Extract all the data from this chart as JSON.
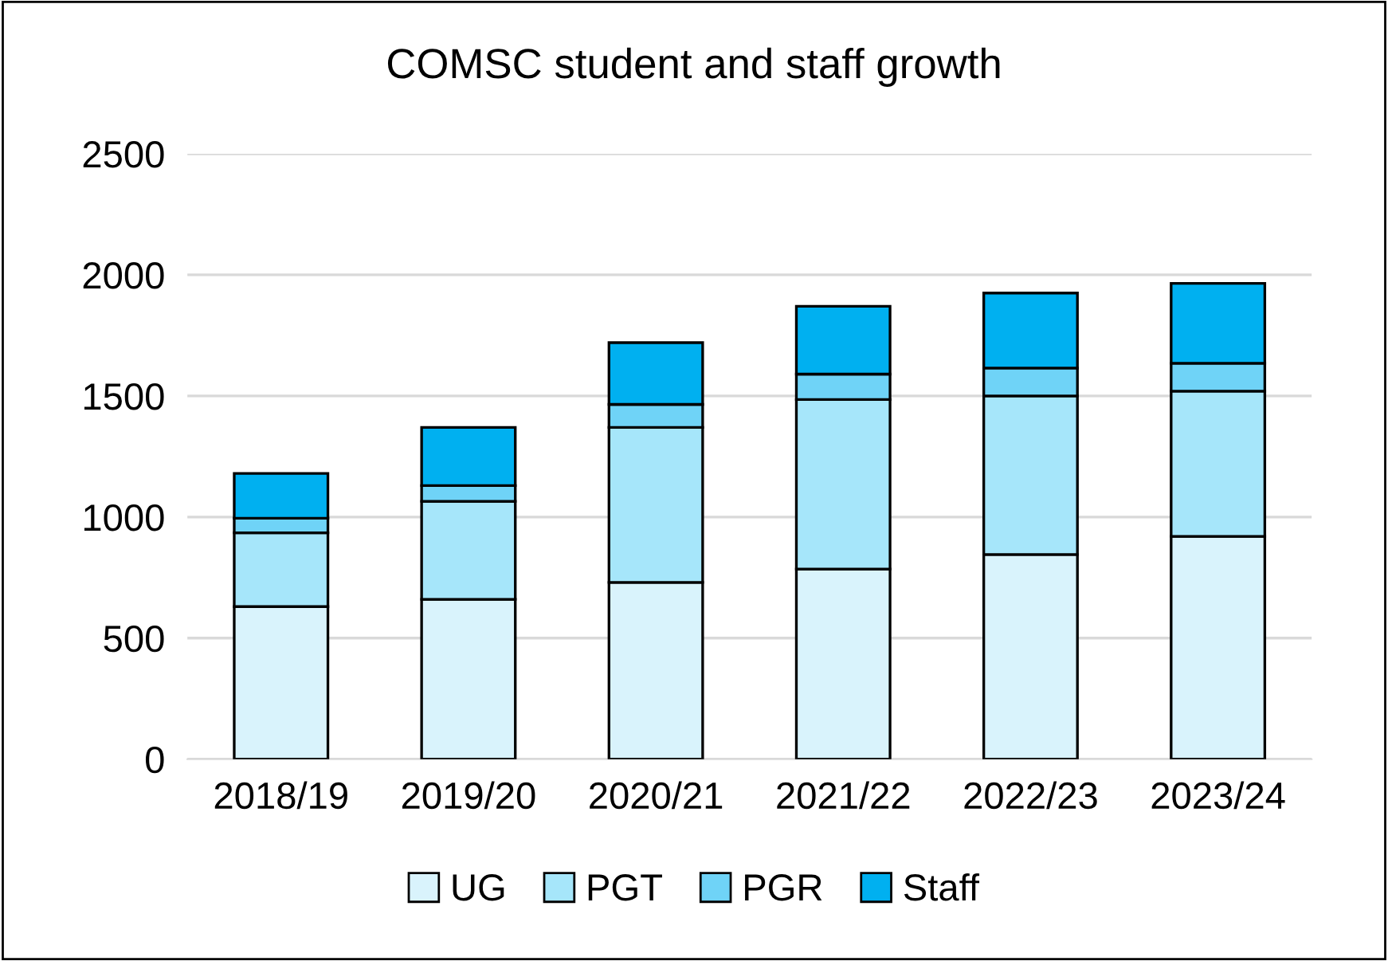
{
  "chart_data": {
    "type": "bar",
    "title": "COMSC student and staff growth",
    "stacked": true,
    "categories": [
      "2018/19",
      "2019/20",
      "2020/21",
      "2021/22",
      "2022/23",
      "2023/24"
    ],
    "series": [
      {
        "name": "UG",
        "color": "#d9f3fc",
        "values": [
          630,
          660,
          730,
          785,
          845,
          920
        ]
      },
      {
        "name": "PGT",
        "color": "#a6e6fa",
        "values": [
          305,
          405,
          640,
          700,
          655,
          600
        ]
      },
      {
        "name": "PGR",
        "color": "#6fd3f7",
        "values": [
          60,
          65,
          95,
          105,
          115,
          115
        ]
      },
      {
        "name": "Staff",
        "color": "#00b0f0",
        "values": [
          185,
          240,
          255,
          280,
          310,
          330
        ]
      }
    ],
    "ylim": [
      0,
      2500
    ],
    "yticks": [
      0,
      500,
      1000,
      1500,
      2000,
      2500
    ],
    "grid": "y",
    "legend": "bottom"
  }
}
